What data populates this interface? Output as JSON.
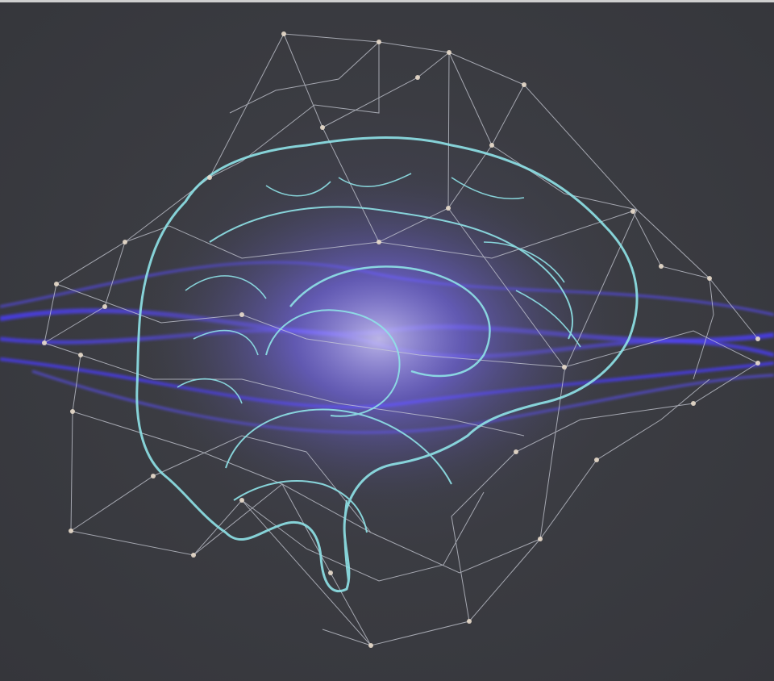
{
  "image": {
    "subject_icon": "brain-icon",
    "colors": {
      "background": "#3b3c40",
      "brain_outline": "#8fe3e8",
      "glow": "#7b6cff",
      "energy_band": "#4a3cff",
      "network_lines": "#c9ccd6",
      "nodes": "#e9dccb"
    }
  }
}
